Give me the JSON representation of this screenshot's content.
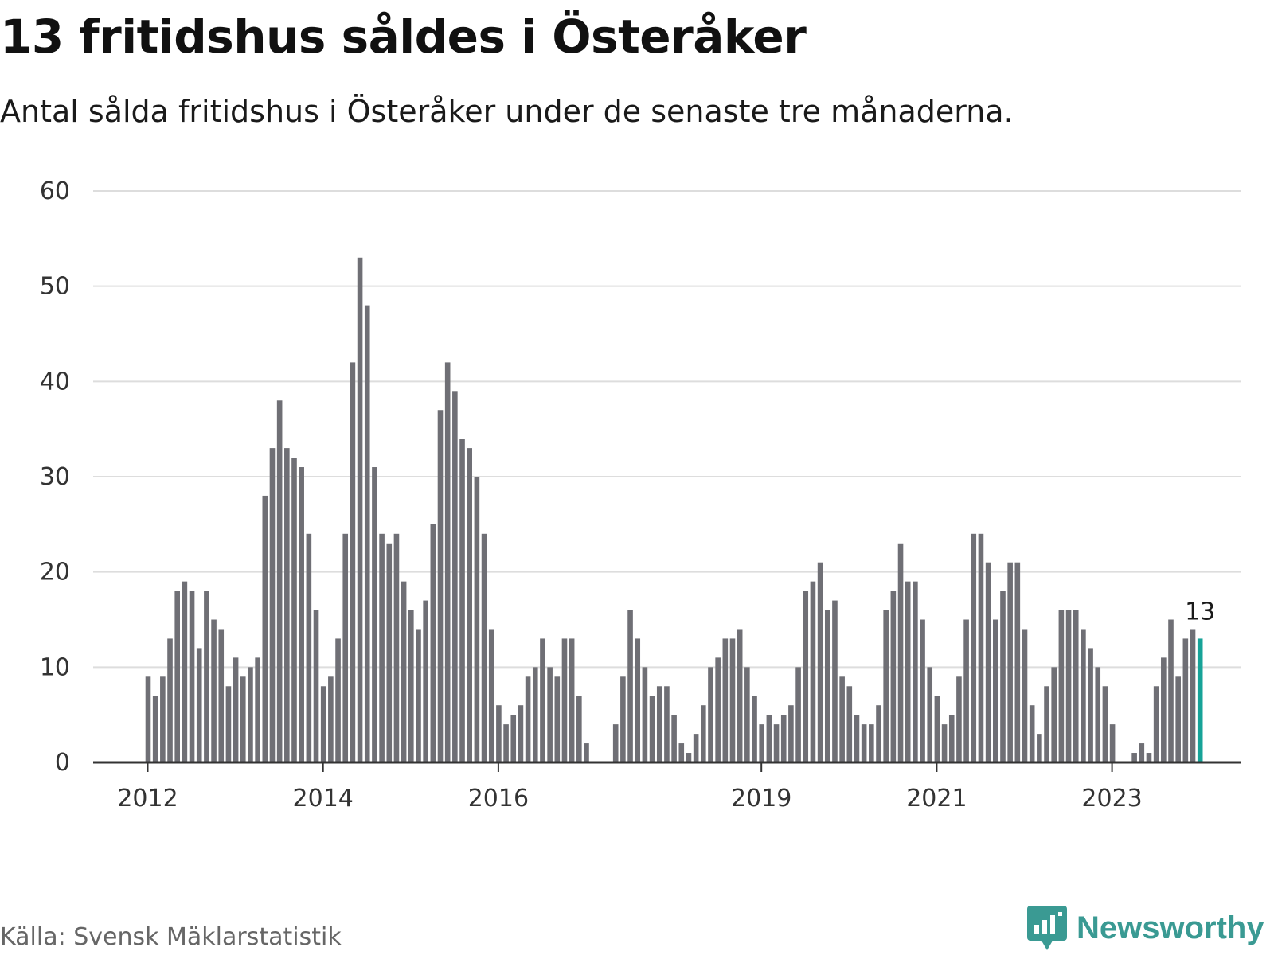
{
  "header": {
    "title": "13 fritidshus såldes i Österåker",
    "subtitle": "Antal sålda fritidshus i Österåker under de senaste tre månaderna."
  },
  "footer": {
    "source": "Källa: Svensk Mäklarstatistik",
    "brand": "Newsworthy",
    "brand_icon": "bar-chart-speech-bubble-icon"
  },
  "colors": {
    "bar": "#6f6f75",
    "highlight": "#17a398",
    "grid": "#dddddd",
    "axis": "#333333",
    "brand": "#3a9a93"
  },
  "chart_data": {
    "type": "bar",
    "title": "13 fritidshus såldes i Österåker",
    "subtitle": "Antal sålda fritidshus i Österåker under de senaste tre månaderna.",
    "xlabel": "",
    "ylabel": "",
    "ylim": [
      0,
      60
    ],
    "yticks": [
      "0",
      "10",
      "20",
      "30",
      "40",
      "50",
      "60"
    ],
    "grid": true,
    "x_start": "2012-01",
    "interval": "month",
    "xtick_labels": [
      {
        "label": "2012",
        "index": 0
      },
      {
        "label": "2014",
        "index": 24
      },
      {
        "label": "2016",
        "index": 48
      },
      {
        "label": "2019",
        "index": 84
      },
      {
        "label": "2021",
        "index": 108
      },
      {
        "label": "2023",
        "index": 132
      }
    ],
    "values": [
      9,
      7,
      9,
      13,
      18,
      19,
      18,
      12,
      18,
      15,
      14,
      8,
      11,
      9,
      10,
      11,
      28,
      33,
      38,
      33,
      32,
      31,
      24,
      16,
      8,
      9,
      13,
      24,
      42,
      53,
      48,
      31,
      24,
      23,
      24,
      19,
      16,
      14,
      17,
      25,
      37,
      42,
      39,
      34,
      33,
      30,
      24,
      14,
      6,
      4,
      5,
      6,
      9,
      10,
      13,
      10,
      9,
      13,
      13,
      7,
      2,
      0,
      0,
      0,
      4,
      9,
      16,
      13,
      10,
      7,
      8,
      8,
      5,
      2,
      1,
      3,
      6,
      10,
      11,
      13,
      13,
      14,
      10,
      7,
      4,
      5,
      4,
      5,
      6,
      10,
      18,
      19,
      21,
      16,
      17,
      9,
      8,
      5,
      4,
      4,
      6,
      16,
      18,
      23,
      19,
      19,
      15,
      10,
      7,
      4,
      5,
      9,
      15,
      24,
      24,
      21,
      15,
      18,
      21,
      21,
      14,
      6,
      3,
      8,
      10,
      16,
      16,
      16,
      14,
      12,
      10,
      8,
      4,
      0,
      0,
      1,
      2,
      1,
      8,
      11,
      15,
      9,
      13,
      14,
      13
    ],
    "highlight_index": 144,
    "highlight_label": "13"
  }
}
